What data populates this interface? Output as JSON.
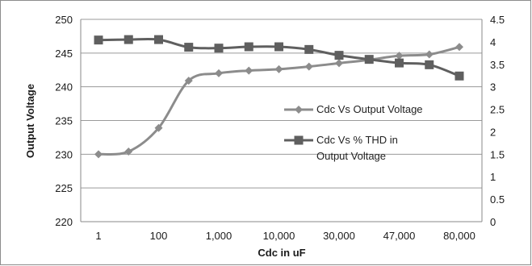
{
  "chart_data": {
    "type": "line",
    "categories": [
      "1",
      "",
      "100",
      "",
      "1,000",
      "",
      "10,000",
      "",
      "30,000",
      "",
      "47,000",
      "",
      "80,000"
    ],
    "xlabel": "Cdc in uF",
    "ylabel": "Output Voltage",
    "ylim": [
      220,
      250
    ],
    "yticks": [
      220,
      225,
      230,
      235,
      240,
      245,
      250
    ],
    "y2lim": [
      0,
      4.5
    ],
    "y2ticks": [
      0,
      0.5,
      1,
      1.5,
      2,
      2.5,
      3,
      3.5,
      4,
      4.5
    ],
    "grid": true,
    "legend_position": "right-middle",
    "series": [
      {
        "name": "Cdc Vs Output Voltage",
        "axis": "left",
        "marker": "diamond",
        "color": "#8c8c8c",
        "values": [
          230.0,
          230.4,
          233.9,
          240.9,
          242.0,
          242.4,
          242.6,
          243.0,
          243.5,
          244.0,
          244.6,
          244.8,
          245.9
        ]
      },
      {
        "name": "Cdc Vs % THD in Output Voltage",
        "legend_lines": [
          "Cdc Vs % THD in",
          "Output Voltage"
        ],
        "axis": "right",
        "marker": "square",
        "color": "#5f5f5f",
        "values": [
          4.04,
          4.05,
          4.05,
          3.88,
          3.86,
          3.89,
          3.89,
          3.83,
          3.7,
          3.61,
          3.53,
          3.49,
          3.24
        ]
      }
    ]
  }
}
